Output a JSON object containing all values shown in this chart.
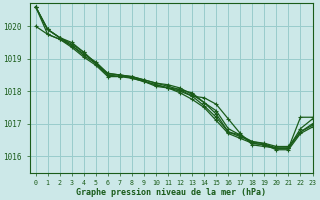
{
  "title": "Graphe pression niveau de la mer (hPa)",
  "background_color": "#cce8e8",
  "grid_color": "#99cccc",
  "line_color": "#1a5c1a",
  "xlim": [
    -0.5,
    23
  ],
  "ylim": [
    1015.5,
    1020.7
  ],
  "yticks": [
    1016,
    1017,
    1018,
    1019,
    1020
  ],
  "xticks": [
    0,
    1,
    2,
    3,
    4,
    5,
    6,
    7,
    8,
    9,
    10,
    11,
    12,
    13,
    14,
    15,
    16,
    17,
    18,
    19,
    20,
    21,
    22,
    23
  ],
  "series": [
    [
      1020.6,
      1019.9,
      1019.65,
      1019.5,
      1019.2,
      1018.85,
      1018.55,
      1018.5,
      1018.4,
      1018.3,
      1018.2,
      1018.1,
      1018.05,
      1017.85,
      1017.8,
      1017.6,
      1017.15,
      1016.7,
      1016.35,
      1016.3,
      1016.25,
      1016.25,
      1017.2,
      1017.2
    ],
    [
      1020.6,
      1019.9,
      1019.65,
      1019.45,
      1019.2,
      1018.85,
      1018.5,
      1018.5,
      1018.45,
      1018.35,
      1018.25,
      1018.2,
      1018.1,
      1017.9,
      1017.65,
      1017.4,
      1016.85,
      1016.65,
      1016.4,
      1016.35,
      1016.25,
      1016.25,
      1016.85,
      1017.15
    ],
    [
      1020.6,
      1019.9,
      1019.65,
      1019.4,
      1019.15,
      1018.9,
      1018.55,
      1018.5,
      1018.45,
      1018.35,
      1018.25,
      1018.15,
      1018.05,
      1017.95,
      1017.65,
      1017.3,
      1016.75,
      1016.65,
      1016.45,
      1016.4,
      1016.3,
      1016.3,
      1016.75,
      1017.0
    ],
    [
      1020.6,
      1019.75,
      1019.6,
      1019.4,
      1019.1,
      1018.85,
      1018.5,
      1018.45,
      1018.45,
      1018.3,
      1018.2,
      1018.1,
      1018.0,
      1017.85,
      1017.55,
      1017.2,
      1016.75,
      1016.6,
      1016.45,
      1016.38,
      1016.25,
      1016.25,
      1016.75,
      1016.95
    ],
    [
      1020.0,
      1019.75,
      1019.6,
      1019.35,
      1019.05,
      1018.8,
      1018.45,
      1018.45,
      1018.4,
      1018.3,
      1018.15,
      1018.1,
      1017.95,
      1017.75,
      1017.5,
      1017.1,
      1016.7,
      1016.55,
      1016.4,
      1016.35,
      1016.2,
      1016.2,
      1016.7,
      1016.9
    ]
  ]
}
